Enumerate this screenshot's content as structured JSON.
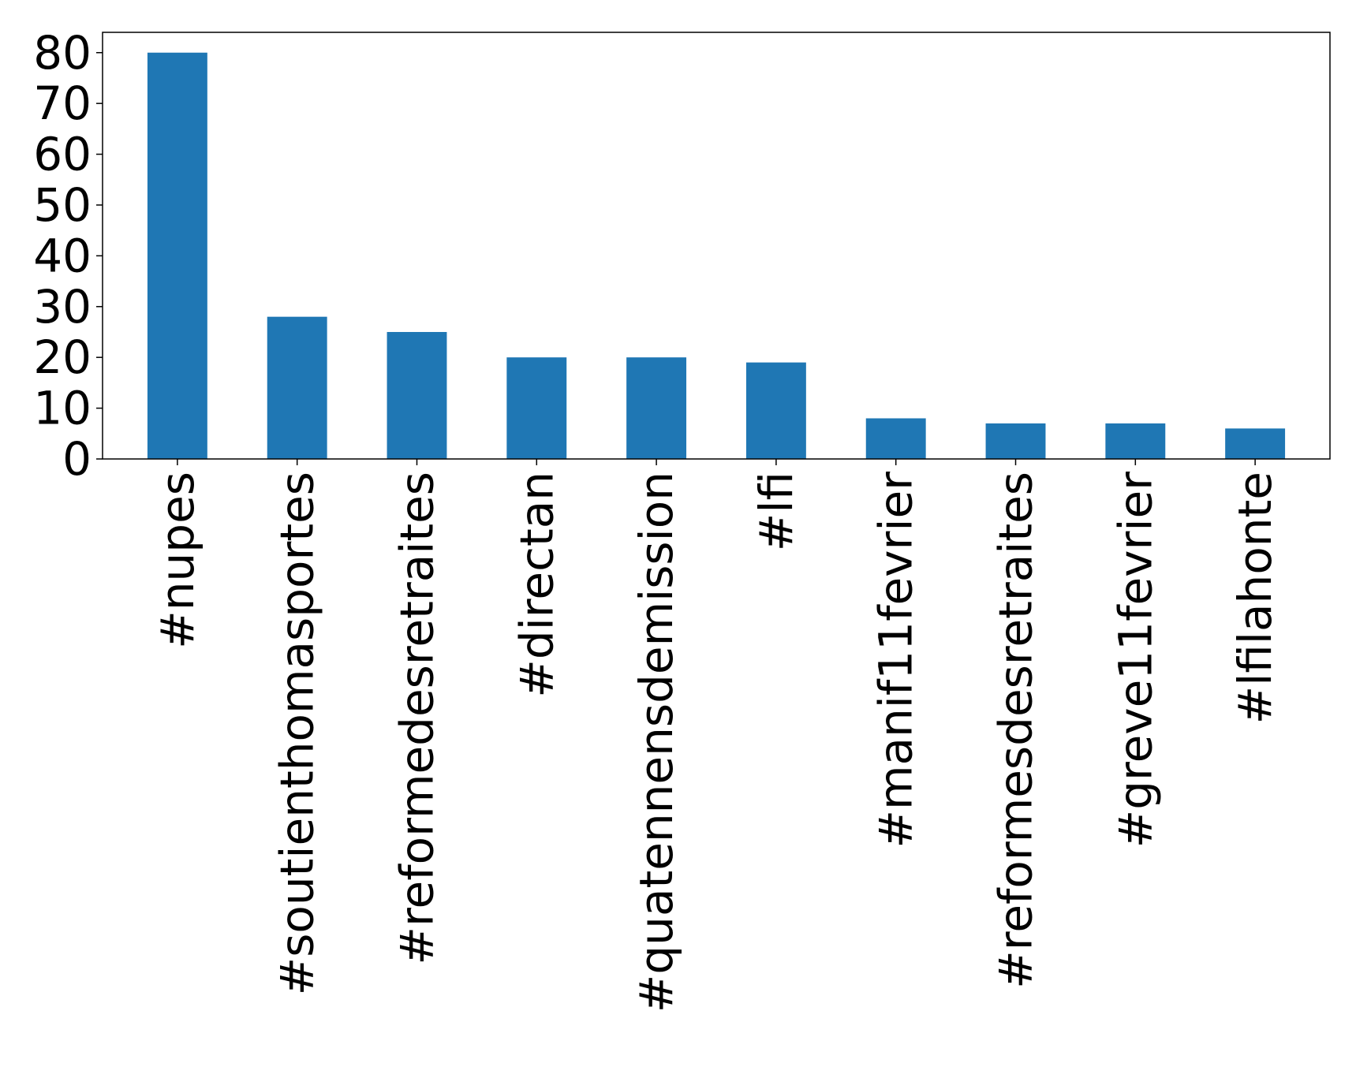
{
  "chart_data": {
    "type": "bar",
    "title": "",
    "xlabel": "",
    "ylabel": "",
    "categories": [
      "#nupes",
      "#soutienthomasportes",
      "#reformedesretraites",
      "#directan",
      "#quatennensdemission",
      "#lfi",
      "#manif11fevrier",
      "#reformesdesretraites",
      "#greve11fevrier",
      "#lfilahonte"
    ],
    "values": [
      80,
      28,
      25,
      20,
      20,
      19,
      8,
      7,
      7,
      6
    ],
    "ylim": [
      0,
      84
    ],
    "yticks": [
      "0",
      "10",
      "20",
      "30",
      "40",
      "50",
      "60",
      "70",
      "80"
    ],
    "grid": false,
    "legend": "none",
    "bar_color": "#1f77b4"
  }
}
